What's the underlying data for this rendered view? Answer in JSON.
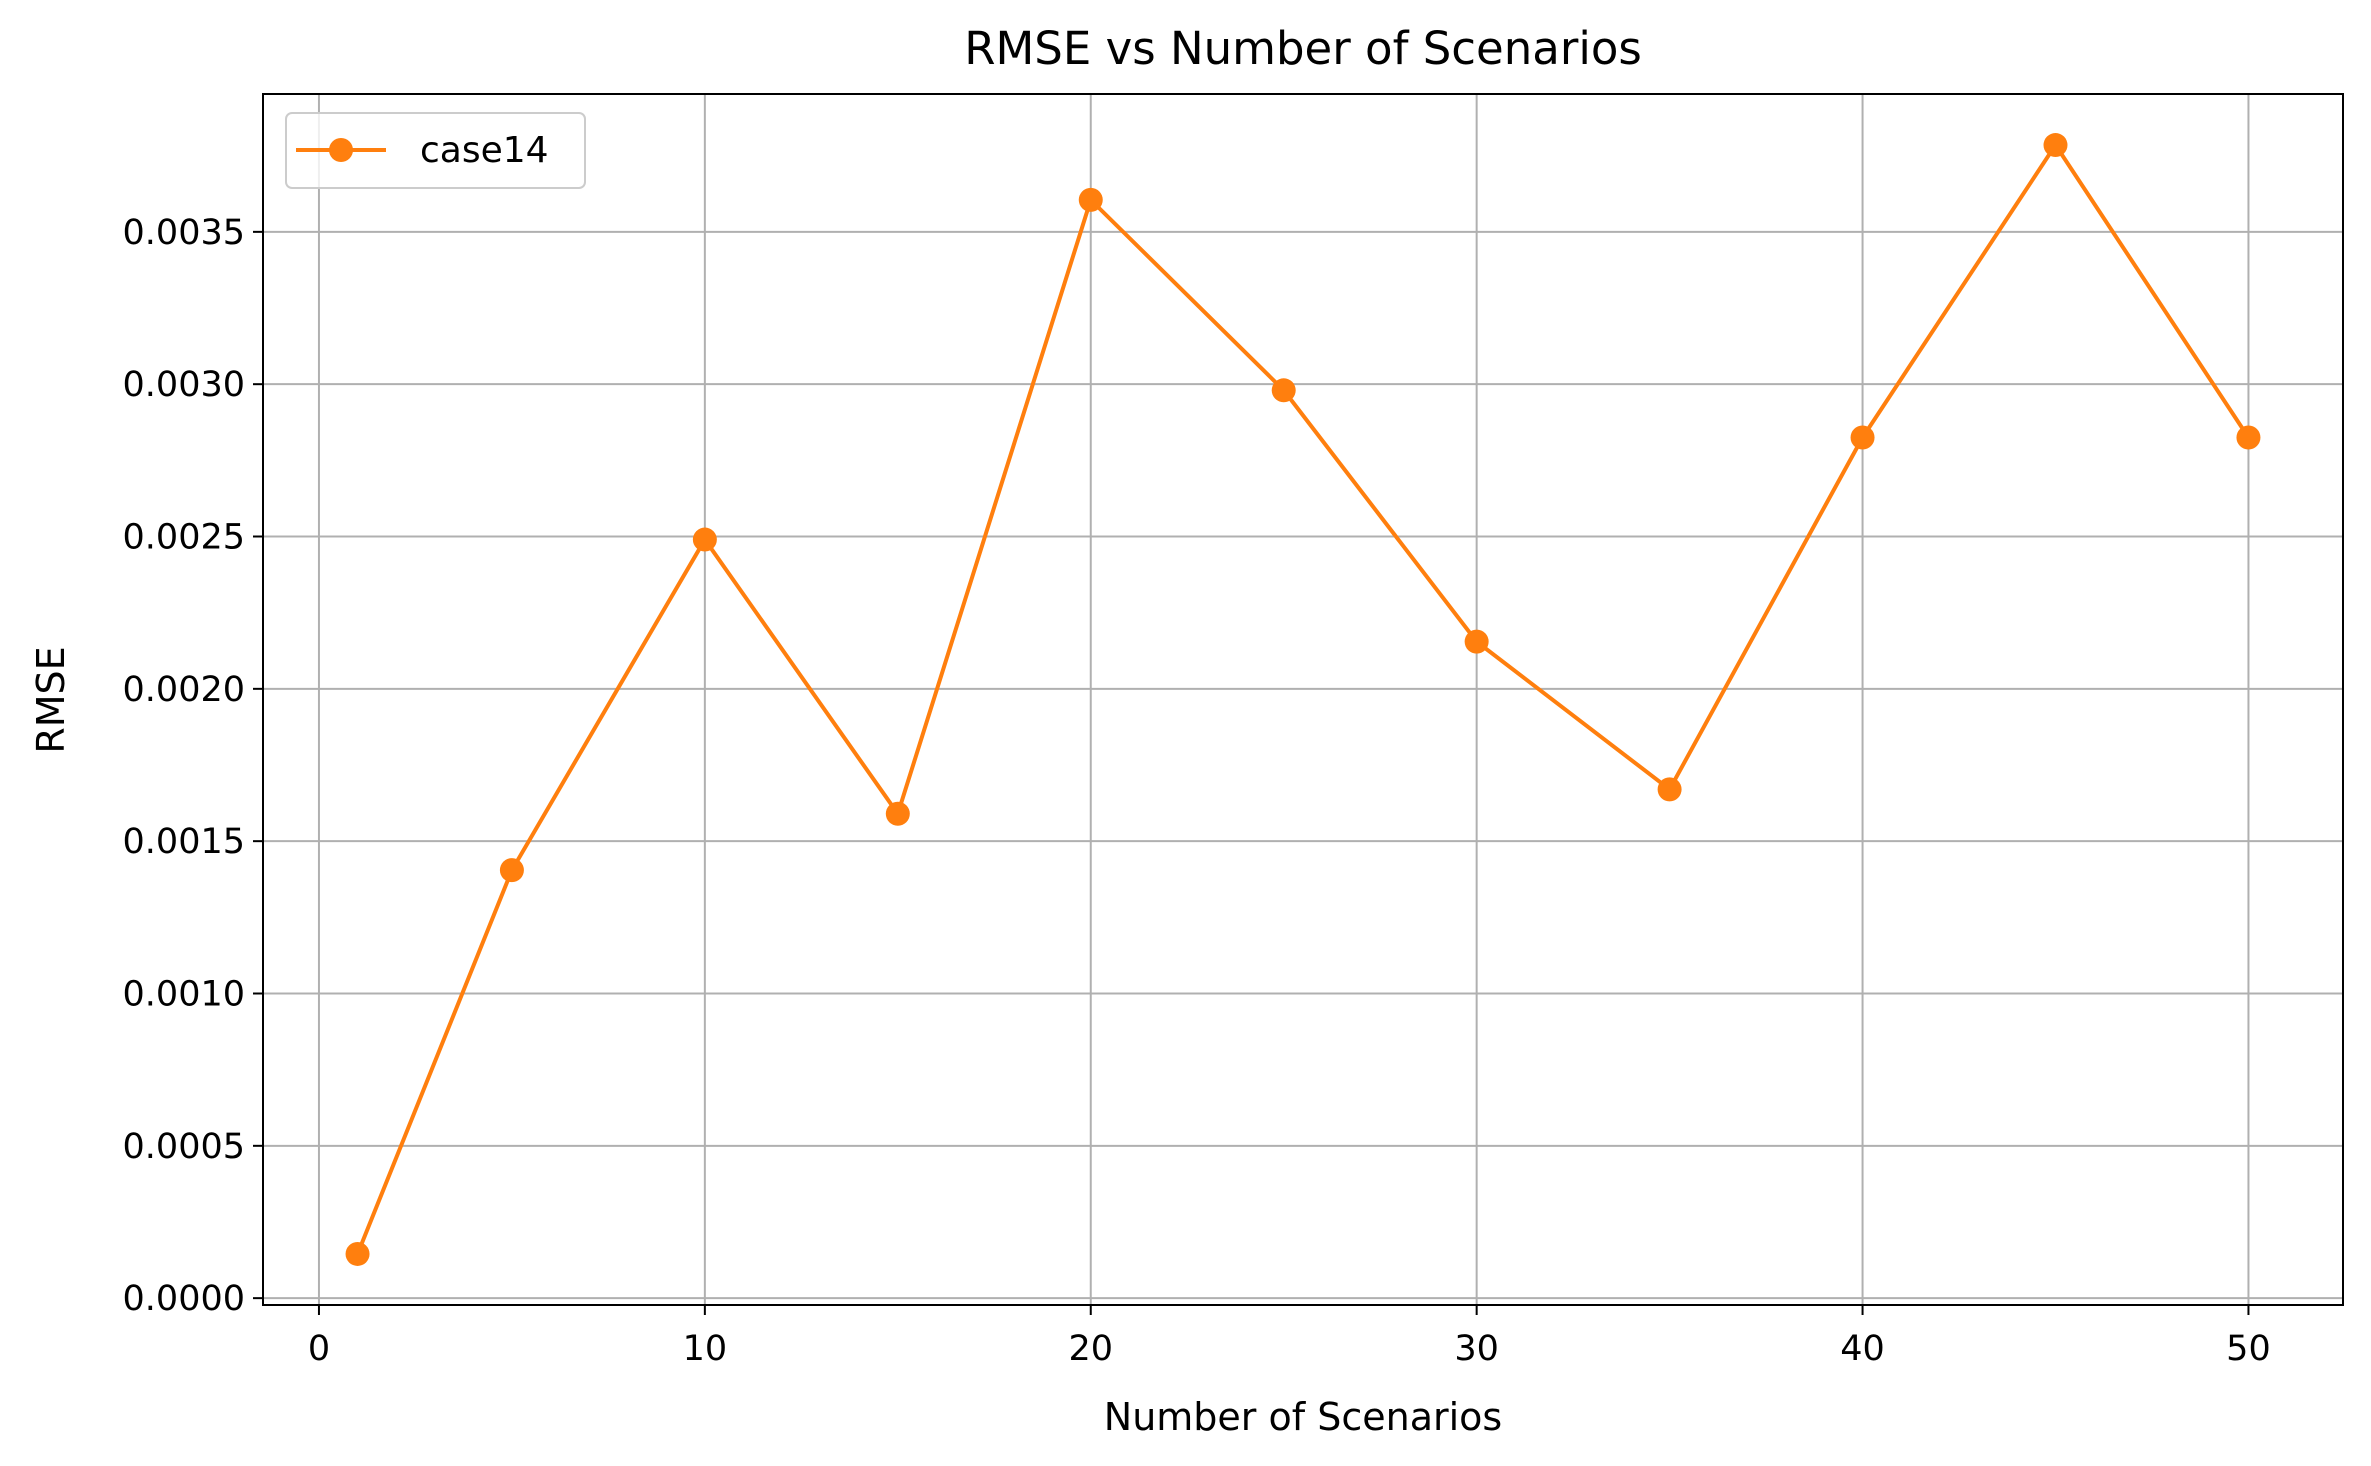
{
  "chart_data": {
    "type": "line",
    "title": "RMSE vs Number of Scenarios",
    "xlabel": "Number of Scenarios",
    "ylabel": "RMSE",
    "xlim": [
      -1.45,
      52.45
    ],
    "ylim": [
      -2.25e-05,
      0.0039525
    ],
    "xticks": [
      0,
      10,
      20,
      30,
      40,
      50
    ],
    "xtick_labels": [
      "0",
      "10",
      "20",
      "30",
      "40",
      "50"
    ],
    "yticks": [
      0.0,
      0.0005,
      0.001,
      0.0015,
      0.002,
      0.0025,
      0.003,
      0.0035
    ],
    "ytick_labels": [
      "0.0000",
      "0.0005",
      "0.0010",
      "0.0015",
      "0.0020",
      "0.0025",
      "0.0030",
      "0.0035"
    ],
    "grid": true,
    "legend_position": "top-left",
    "series": [
      {
        "name": "case14",
        "color": "#ff7f0e",
        "marker": "circle",
        "x": [
          1,
          5,
          10,
          15,
          20,
          25,
          30,
          35,
          40,
          45,
          50
        ],
        "y": [
          0.000145,
          0.001405,
          0.00249,
          0.00159,
          0.003605,
          0.00298,
          0.002155,
          0.00167,
          0.002825,
          0.003785,
          0.002825
        ]
      }
    ]
  }
}
